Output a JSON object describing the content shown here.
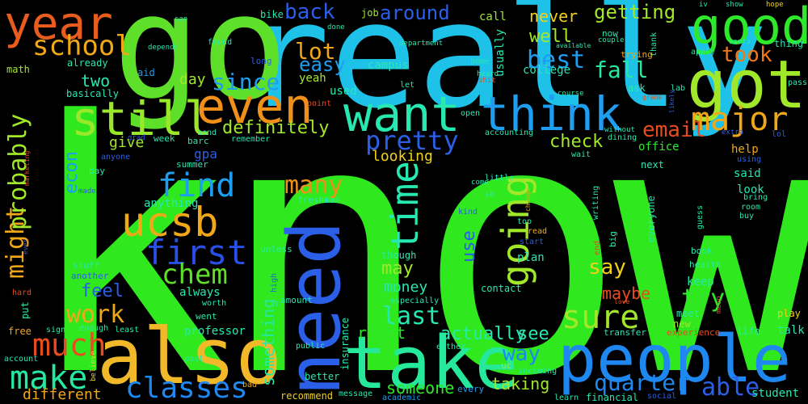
{
  "words": {
    "know": "know",
    "really": "really",
    "go": "go",
    "year": "year",
    "also": "also",
    "take": "take",
    "need": "need",
    "people": "people",
    "got": "got",
    "good": "good",
    "want": "want",
    "think": "think",
    "still": "still",
    "even": "even",
    "ucsb": "ucsb",
    "school": "school",
    "first": "first",
    "find": "find",
    "time": "time",
    "going": "going",
    "much": "much",
    "make": "make",
    "classes": "classes",
    "major": "major",
    "took": "took",
    "email": "email",
    "pretty": "pretty",
    "sure": "sure",
    "quarter": "quarter",
    "able": "able",
    "last": "last",
    "chem": "chem",
    "work": "work",
    "might": "might",
    "probably": "probably",
    "definitely": "definitely",
    "since": "since",
    "back": "back",
    "around": "around",
    "lot": "lot",
    "easy": "easy",
    "best": "best",
    "fall": "fall",
    "well": "well",
    "getting": "getting",
    "never": "never",
    "many": "many",
    "say": "say",
    "try": "try",
    "way": "way",
    "actually": "actually",
    "see": "see",
    "someone": "someone",
    "something": "something",
    "different": "different",
    "maybe": "maybe",
    "may": "may",
    "use": "use",
    "two": "two",
    "econ": "econ",
    "feel": "feel",
    "check": "check",
    "looking": "looking",
    "right": "right",
    "money": "money",
    "taking": "taking",
    "give": "give",
    "day": "day",
    "gpa": "gpa",
    "yeah": "yeah",
    "used": "used",
    "campus": "campus",
    "college": "college",
    "usually": "usually",
    "call": "call",
    "job": "job",
    "bike": "bike",
    "math": "math",
    "already": "already",
    "aid": "aid",
    "basically": "basically",
    "since2": "",
    "office": "office",
    "help": "help",
    "said": "said",
    "look": "look",
    "keep": "keep",
    "next": "next",
    "everyone": "everyone",
    "plan": "plan",
    "though": "though",
    "contact": "contact",
    "professor": "professor",
    "student": "student",
    "talk": "talk",
    "life": "life",
    "play": "play",
    "meet": "meet",
    "new": "new",
    "experience": "experience",
    "transfer": "transfer",
    "financial": "financial",
    "social": "social",
    "learn": "learn",
    "incoming": "incoming",
    "uc": "uc",
    "every": "every",
    "academic": "academic",
    "message": "message",
    "recommend": "recommend",
    "better": "better",
    "public": "public",
    "either": "either",
    "insurance": "insurance",
    "especially": "especially",
    "amount": "amount",
    "high": "high",
    "unless": "unless",
    "always": "always",
    "went": "went",
    "stuff": "stuff",
    "another": "another",
    "worth": "worth",
    "put": "put",
    "free": "free",
    "sign": "sign",
    "enough": "enough",
    "least": "least",
    "account": "account",
    "hard": "hard",
    "believe": "believe",
    "post": "post",
    "bad": "bad",
    "anything": "anything",
    "freshman": "freshman",
    "summer": "summer",
    "barc": "barc",
    "pay": "pay",
    "anyone": "anyone",
    "made": "made",
    "ever": "ever",
    "marketing": "marketing",
    "grad": "grad",
    "week": "week",
    "send": "send",
    "remember": "remember",
    "dining": "dining",
    "without": "without",
    "lol": "lol",
    "extra": "extra",
    "using": "using",
    "bring": "bring",
    "room": "room",
    "buy": "buy",
    "guess": "guess",
    "book": "book",
    "health": "health",
    "mean": "mean",
    "love": "love",
    "writing": "writing",
    "big": "big",
    "end": "end",
    "start": "start",
    "read": "read",
    "top": "top",
    "change": "change",
    "sb": "sb",
    "little": "little",
    "come": "come",
    "kind": "kind",
    "accounting": "accounting",
    "wait": "wait",
    "open": "open",
    "course": "course",
    "point": "point",
    "shit": "shit",
    "heard": "heard",
    "home": "home",
    "let": "let",
    "ask": "ask",
    "lab": "lab",
    "grade": "grade",
    "likely": "likely",
    "thank": "thank",
    "trying": "trying",
    "couple": "couple",
    "now": "now",
    "available": "available",
    "department": "department",
    "done": "done",
    "san": "san",
    "found": "found",
    "long": "long",
    "depends": "depends",
    "iv": "iv",
    "show": "show",
    "hope": "hope",
    "santa": "santa",
    "apply": "apply",
    "thing": "thing",
    "pass": "pass"
  }
}
